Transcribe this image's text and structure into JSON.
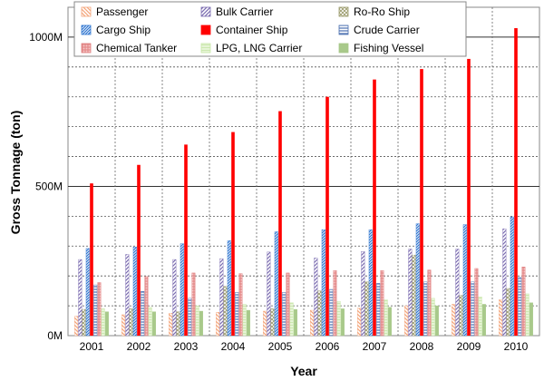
{
  "chart_data": {
    "type": "bar",
    "xlabel": "Year",
    "ylabel": "Gross Tonnage (ton)",
    "ylim": [
      0,
      1100
    ],
    "y_ticks": [
      {
        "value": 0,
        "label": "0M"
      },
      {
        "value": 500,
        "label": "500M"
      },
      {
        "value": 1000,
        "label": "1000M"
      }
    ],
    "grid": true,
    "legend_position": "top",
    "categories": [
      "2001",
      "2002",
      "2003",
      "2004",
      "2005",
      "2006",
      "2007",
      "2008",
      "2009",
      "2010"
    ],
    "series": [
      {
        "name": "Passenger",
        "color": "#f4a57a",
        "pattern": "diag-down",
        "values": [
          65,
          70,
          75,
          78,
          82,
          85,
          92,
          100,
          105,
          120
        ]
      },
      {
        "name": "Bulk Carrier",
        "color": "#7a6bb0",
        "pattern": "diag-up",
        "values": [
          255,
          272,
          255,
          258,
          280,
          260,
          282,
          290,
          290,
          358
        ]
      },
      {
        "name": "Ro-Ro Ship",
        "color": "#9a9a6a",
        "pattern": "cross",
        "values": [
          88,
          90,
          80,
          165,
          90,
          150,
          180,
          270,
          135,
          158
        ]
      },
      {
        "name": "Cargo Ship",
        "color": "#2e75d0",
        "pattern": "diag-up-dense",
        "values": [
          292,
          297,
          308,
          318,
          348,
          355,
          355,
          375,
          372,
          398
        ]
      },
      {
        "name": "Container Ship",
        "color": "#ff0000",
        "pattern": "solid",
        "values": [
          510,
          572,
          640,
          682,
          752,
          800,
          858,
          893,
          927,
          1030
        ]
      },
      {
        "name": "Crude Carrier",
        "color": "#4a6fb0",
        "pattern": "horizontal",
        "values": [
          170,
          148,
          125,
          145,
          145,
          155,
          175,
          180,
          180,
          195
        ]
      },
      {
        "name": "Chemical Tanker",
        "color": "#e08080",
        "pattern": "grid",
        "values": [
          178,
          198,
          210,
          208,
          210,
          218,
          218,
          220,
          225,
          230
        ]
      },
      {
        "name": "LPG, LNG Carrier",
        "color": "#c6e6a6",
        "pattern": "light",
        "values": [
          90,
          95,
          100,
          105,
          110,
          115,
          120,
          125,
          130,
          140
        ]
      },
      {
        "name": "Fishing Vessel",
        "color": "#a8c98a",
        "pattern": "solid-soft",
        "values": [
          80,
          80,
          82,
          85,
          88,
          90,
          95,
          100,
          105,
          110
        ]
      }
    ]
  }
}
